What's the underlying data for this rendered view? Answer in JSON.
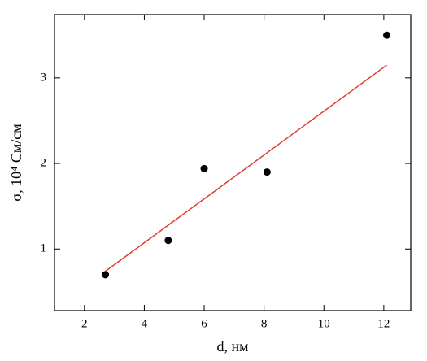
{
  "chart_data": {
    "type": "scatter",
    "x_label": "d, нм",
    "y_label": "σ, 10⁴ См/см",
    "x": [
      2.7,
      4.8,
      6.0,
      8.1,
      12.1
    ],
    "values": [
      0.7,
      1.1,
      1.94,
      1.9,
      3.5
    ],
    "color": "#000000",
    "fit": {
      "x": [
        2.7,
        12.1
      ],
      "values": [
        0.74,
        3.15
      ],
      "color": "#e03c31"
    },
    "xlim": [
      1,
      12.9
    ],
    "ylim": [
      0.28,
      3.74
    ],
    "xticks": [
      2,
      4,
      6,
      8,
      10,
      12
    ],
    "yticks": [
      1,
      2,
      3
    ],
    "grid": false
  }
}
